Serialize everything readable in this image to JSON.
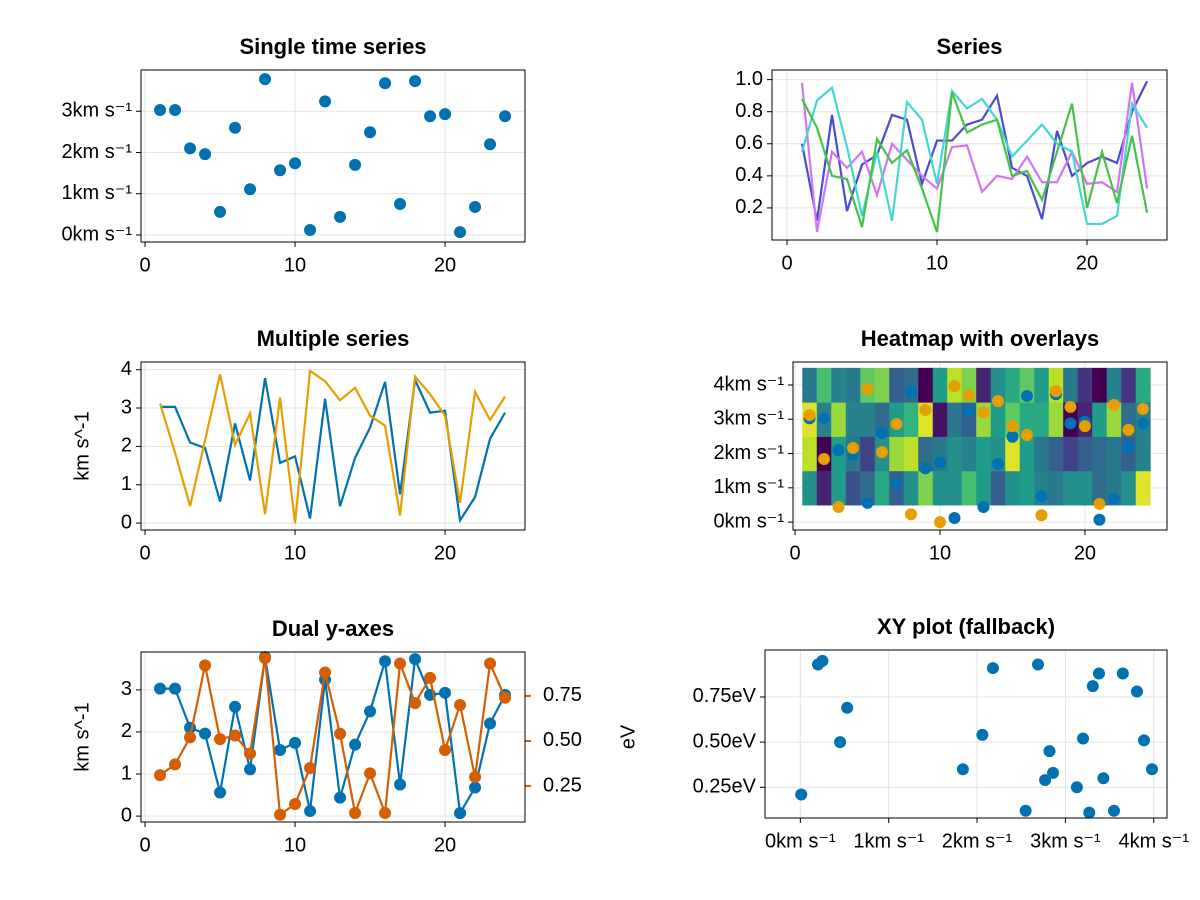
{
  "chart_data": [
    {
      "type": "scatter",
      "title": "Single time series",
      "x": [
        1,
        2,
        3,
        4,
        5,
        6,
        7,
        8,
        9,
        10,
        11,
        12,
        13,
        14,
        15,
        16,
        17,
        18,
        19,
        20,
        21,
        22,
        23,
        24
      ],
      "series": [
        {
          "color": "#0072b2",
          "values": [
            3.03,
            3.03,
            2.1,
            1.96,
            0.56,
            2.6,
            1.11,
            3.78,
            1.57,
            1.74,
            0.12,
            3.24,
            0.44,
            1.7,
            2.49,
            3.68,
            0.75,
            3.73,
            2.88,
            2.93,
            0.07,
            0.68,
            2.2,
            2.88
          ]
        }
      ],
      "xlim": [
        -0.27,
        25.33
      ],
      "xticks": [
        0,
        10,
        20
      ],
      "ylim": [
        -0.17,
        4.0
      ],
      "yticks": [
        {
          "value": 0,
          "label": "0km s⁻¹"
        },
        {
          "value": 1,
          "label": "1km s⁻¹"
        },
        {
          "value": 2,
          "label": "2km s⁻¹"
        },
        {
          "value": 3,
          "label": "3km s⁻¹"
        }
      ],
      "grid": true
    },
    {
      "type": "line",
      "title": "Series",
      "x": [
        1,
        2,
        3,
        4,
        5,
        6,
        7,
        8,
        9,
        10,
        11,
        12,
        13,
        14,
        15,
        16,
        17,
        18,
        19,
        20,
        21,
        22,
        23,
        24
      ],
      "series": [
        {
          "color": "#4b4bd2",
          "values": [
            0.6,
            0.12,
            0.78,
            0.18,
            0.47,
            0.53,
            0.78,
            0.75,
            0.35,
            0.62,
            0.62,
            0.72,
            0.75,
            0.9,
            0.45,
            0.4,
            0.13,
            0.68,
            0.4,
            0.48,
            0.52,
            0.48,
            0.8,
            0.99
          ]
        },
        {
          "color": "#d275f5",
          "values": [
            0.98,
            0.05,
            0.55,
            0.45,
            0.55,
            0.28,
            0.6,
            0.5,
            0.4,
            0.32,
            0.58,
            0.59,
            0.3,
            0.4,
            0.38,
            0.52,
            0.36,
            0.36,
            0.55,
            0.35,
            0.36,
            0.3,
            0.98,
            0.32
          ]
        },
        {
          "color": "#44d7d2",
          "values": [
            0.55,
            0.87,
            0.95,
            0.58,
            0.15,
            0.55,
            0.12,
            0.86,
            0.75,
            0.35,
            0.93,
            0.82,
            0.88,
            0.75,
            0.52,
            0.62,
            0.72,
            0.6,
            0.55,
            0.1,
            0.1,
            0.15,
            0.85,
            0.7
          ]
        },
        {
          "color": "#46c346",
          "values": [
            0.88,
            0.7,
            0.4,
            0.38,
            0.08,
            0.63,
            0.48,
            0.56,
            0.32,
            0.05,
            0.92,
            0.67,
            0.72,
            0.75,
            0.4,
            0.43,
            0.25,
            0.55,
            0.85,
            0.2,
            0.55,
            0.23,
            0.65,
            0.17
          ]
        }
      ],
      "xlim": [
        -1.0,
        25.33
      ],
      "xticks": [
        0,
        10,
        20
      ],
      "ylim": [
        0.0,
        1.06
      ],
      "yticks": [
        0.2,
        0.4,
        0.6,
        0.8,
        {
          "value": 1,
          "label": "1.0"
        }
      ],
      "grid": true
    },
    {
      "type": "line",
      "title": "Multiple series",
      "ylabel": "km s^-1",
      "x": [
        1,
        2,
        3,
        4,
        5,
        6,
        7,
        8,
        9,
        10,
        11,
        12,
        13,
        14,
        15,
        16,
        17,
        18,
        19,
        20,
        21,
        22,
        23,
        24
      ],
      "series": [
        {
          "color": "#0072b2",
          "values": [
            3.03,
            3.03,
            2.1,
            1.96,
            0.56,
            2.6,
            1.11,
            3.78,
            1.57,
            1.74,
            0.12,
            3.24,
            0.44,
            1.7,
            2.49,
            3.68,
            0.75,
            3.73,
            2.88,
            2.93,
            0.07,
            0.68,
            2.2,
            2.88
          ]
        },
        {
          "color": "#e69f00",
          "values": [
            3.12,
            1.84,
            0.44,
            2.16,
            3.88,
            2.04,
            2.86,
            0.23,
            3.27,
            0.0,
            3.97,
            3.7,
            3.2,
            3.53,
            2.8,
            2.54,
            0.2,
            3.82,
            3.36,
            2.8,
            0.53,
            3.42,
            2.69,
            3.3
          ]
        }
      ],
      "xlim": [
        -0.27,
        25.33
      ],
      "xticks": [
        0,
        10,
        20
      ],
      "ylim": [
        -0.18,
        4.2
      ],
      "yticks": [
        0,
        1,
        2,
        3,
        4
      ],
      "grid": true
    },
    {
      "type": "heatmap",
      "title": "Heatmap with overlays",
      "colormap": "viridis",
      "x": [
        1,
        2,
        3,
        4,
        5,
        6,
        7,
        8,
        9,
        10,
        11,
        12,
        13,
        14,
        15,
        16,
        17,
        18,
        19,
        20,
        21,
        22,
        23,
        24
      ],
      "y": [
        1,
        2,
        3,
        4
      ],
      "z": [
        [
          0.5,
          0.1,
          0.55,
          0.25,
          0.35,
          0.6,
          0.3,
          0.5,
          0.8,
          0.5,
          0.5,
          0.7,
          0.55,
          0.3,
          0.5,
          0.55,
          0.45,
          0.4,
          0.5,
          0.5,
          0.35,
          0.4,
          0.5,
          0.95
        ],
        [
          0.9,
          0.0,
          0.55,
          0.4,
          0.2,
          0.5,
          0.85,
          0.9,
          0.35,
          0.4,
          0.5,
          0.45,
          0.55,
          0.5,
          0.95,
          0.55,
          0.4,
          0.3,
          0.2,
          0.3,
          0.35,
          0.4,
          0.3,
          0.45
        ],
        [
          0.95,
          0.45,
          0.85,
          0.45,
          0.45,
          0.35,
          0.55,
          0.65,
          0.95,
          0.05,
          0.4,
          0.3,
          0.85,
          0.55,
          0.75,
          0.6,
          0.6,
          0.85,
          0.0,
          0.1,
          0.55,
          0.85,
          0.35,
          0.45
        ],
        [
          0.4,
          0.7,
          0.45,
          0.4,
          0.75,
          0.8,
          0.3,
          0.35,
          0.0,
          0.55,
          0.9,
          0.8,
          0.1,
          0.5,
          0.6,
          0.75,
          0.55,
          0.9,
          0.4,
          0.15,
          0.0,
          0.45,
          0.15,
          0.6
        ]
      ],
      "series": [
        {
          "color": "#0072b2",
          "values": [
            3.03,
            3.03,
            2.1,
            1.96,
            0.56,
            2.6,
            1.11,
            3.78,
            1.57,
            1.74,
            0.12,
            3.24,
            0.44,
            1.7,
            2.49,
            3.68,
            0.75,
            3.73,
            2.88,
            2.93,
            0.07,
            0.68,
            2.2,
            2.88
          ]
        },
        {
          "color": "#e69f00",
          "values": [
            3.12,
            1.84,
            0.44,
            2.16,
            3.88,
            2.04,
            2.86,
            0.23,
            3.27,
            0.0,
            3.97,
            3.7,
            3.2,
            3.53,
            2.8,
            2.54,
            0.2,
            3.82,
            3.36,
            2.8,
            0.53,
            3.42,
            2.69,
            3.3
          ]
        }
      ],
      "xlim": [
        -0.14,
        25.66
      ],
      "xticks": [
        0,
        10,
        20
      ],
      "ylim": [
        -0.23,
        4.67
      ],
      "yticks": [
        {
          "value": 0,
          "label": "0km s⁻¹"
        },
        {
          "value": 1,
          "label": "1km s⁻¹"
        },
        {
          "value": 2,
          "label": "2km s⁻¹"
        },
        {
          "value": 3,
          "label": "3km s⁻¹"
        },
        {
          "value": 4,
          "label": "4km s⁻¹"
        }
      ],
      "grid": true
    },
    {
      "type": "line",
      "markers": true,
      "title": "Dual y-axes",
      "ylabel": "km s^-1",
      "y2label": "eV",
      "x": [
        1,
        2,
        3,
        4,
        5,
        6,
        7,
        8,
        9,
        10,
        11,
        12,
        13,
        14,
        15,
        16,
        17,
        18,
        19,
        20,
        21,
        22,
        23,
        24
      ],
      "series": [
        {
          "color": "#0072b2",
          "values": [
            3.03,
            3.03,
            2.1,
            1.96,
            0.56,
            2.6,
            1.11,
            3.78,
            1.57,
            1.74,
            0.12,
            3.24,
            0.44,
            1.7,
            2.49,
            3.68,
            0.75,
            3.73,
            2.88,
            2.93,
            0.07,
            0.68,
            2.2,
            2.88
          ]
        },
        {
          "color": "#d55e00",
          "axis": "y2",
          "values": [
            0.31,
            0.37,
            0.52,
            0.92,
            0.51,
            0.53,
            0.43,
            0.96,
            0.09,
            0.15,
            0.35,
            0.88,
            0.54,
            0.1,
            0.32,
            0.1,
            0.93,
            0.71,
            0.85,
            0.45,
            0.7,
            0.3,
            0.93,
            0.74
          ]
        }
      ],
      "xlim": [
        -0.27,
        25.33
      ],
      "xticks": [
        0,
        10,
        20
      ],
      "ylim": [
        -0.14,
        3.9
      ],
      "yticks": [
        0,
        1,
        2,
        3
      ],
      "y2lim": [
        0.05,
        0.994
      ],
      "y2ticks": [
        0.25,
        {
          "value": 0.5,
          "label": "0.50"
        },
        0.75
      ],
      "grid": true
    },
    {
      "type": "scatter",
      "title": "XY plot (fallback)",
      "x": [
        0.01,
        0.2,
        0.25,
        0.45,
        0.53,
        1.84,
        2.06,
        2.18,
        2.55,
        2.69,
        2.77,
        2.82,
        2.86,
        3.13,
        3.2,
        3.27,
        3.31,
        3.38,
        3.43,
        3.55,
        3.65,
        3.81,
        3.89,
        3.98
      ],
      "series": [
        {
          "color": "#0072b2",
          "values": [
            0.21,
            0.93,
            0.95,
            0.5,
            0.69,
            0.35,
            0.54,
            0.91,
            0.12,
            0.93,
            0.29,
            0.45,
            0.33,
            0.25,
            0.52,
            0.11,
            0.81,
            0.88,
            0.3,
            0.12,
            0.88,
            0.78,
            0.51,
            0.35
          ]
        }
      ],
      "xlim": [
        -0.4,
        4.15
      ],
      "xticks": [
        {
          "value": 0,
          "label": "0km s⁻¹"
        },
        {
          "value": 1,
          "label": "1km s⁻¹"
        },
        {
          "value": 2,
          "label": "2km s⁻¹"
        },
        {
          "value": 3,
          "label": "3km s⁻¹"
        },
        {
          "value": 4,
          "label": "4km s⁻¹"
        }
      ],
      "ylim": [
        0.08,
        1.01
      ],
      "yticks": [
        {
          "value": 0.25,
          "label": "0.25eV"
        },
        {
          "value": 0.5,
          "label": "0.50eV"
        },
        {
          "value": 0.75,
          "label": "0.75eV"
        }
      ],
      "grid": true
    }
  ]
}
